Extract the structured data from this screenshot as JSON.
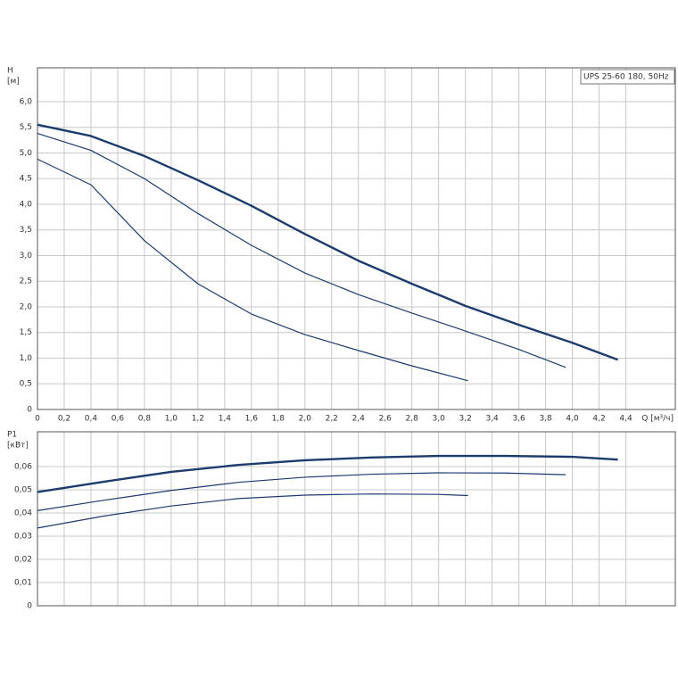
{
  "chart_data": [
    {
      "type": "line",
      "annotation": "UPS 25-60 180, 50Hz",
      "y_label": "H",
      "y_unit": "[м]",
      "x_label": "Q [м³/ч]",
      "xlim": [
        0,
        4.77
      ],
      "ylim": [
        0,
        6.66
      ],
      "grid": true,
      "xticks": [
        0,
        {
          "value": 0.2,
          "label": "0,2"
        },
        {
          "value": 0.4,
          "label": "0,4"
        },
        {
          "value": 0.6,
          "label": "0,6"
        },
        {
          "value": 0.8,
          "label": "0,8"
        },
        {
          "value": 1.0,
          "label": "1,0"
        },
        {
          "value": 1.2,
          "label": "1,2"
        },
        {
          "value": 1.4,
          "label": "1,4"
        },
        {
          "value": 1.6,
          "label": "1,6"
        },
        {
          "value": 1.8,
          "label": "1,8"
        },
        {
          "value": 2.0,
          "label": "2,0"
        },
        {
          "value": 2.2,
          "label": "2,2"
        },
        {
          "value": 2.4,
          "label": "2,4"
        },
        {
          "value": 2.6,
          "label": "2,6"
        },
        {
          "value": 2.8,
          "label": "2,8"
        },
        {
          "value": 3.0,
          "label": "3,0"
        },
        {
          "value": 3.2,
          "label": "3,2"
        },
        {
          "value": 3.4,
          "label": "3,4"
        },
        {
          "value": 3.6,
          "label": "3,6"
        },
        {
          "value": 3.8,
          "label": "3,8"
        },
        {
          "value": 4.0,
          "label": "4,0"
        },
        {
          "value": 4.2,
          "label": "4,2"
        },
        {
          "value": 4.4,
          "label": "4,4"
        }
      ],
      "yticks": [
        0,
        {
          "value": 0.5,
          "label": "0,5"
        },
        {
          "value": 1.0,
          "label": "1,0"
        },
        {
          "value": 1.5,
          "label": "1,5"
        },
        {
          "value": 2.0,
          "label": "2,0"
        },
        {
          "value": 2.5,
          "label": "2,5"
        },
        {
          "value": 3.0,
          "label": "3,0"
        },
        {
          "value": 3.5,
          "label": "3,5"
        },
        {
          "value": 4.0,
          "label": "4,0"
        },
        {
          "value": 4.5,
          "label": "4,5"
        },
        {
          "value": 5.0,
          "label": "5,0"
        },
        {
          "value": 5.5,
          "label": "5,5"
        },
        {
          "value": 6.0,
          "label": "6,0"
        }
      ],
      "series": [
        {
          "color": "#1c3c6e",
          "x": [
            0,
            0.4,
            0.8,
            1.2,
            1.6,
            2.0,
            2.4,
            2.8,
            3.2,
            3.6,
            4.0,
            4.34
          ],
          "values": [
            5.55,
            5.33,
            4.94,
            4.47,
            3.97,
            3.42,
            2.9,
            2.45,
            2.02,
            1.65,
            1.3,
            0.97
          ]
        },
        {
          "color": "#1c3c6e",
          "x": [
            0,
            0.4,
            0.8,
            1.2,
            1.6,
            2.0,
            2.4,
            2.8,
            3.2,
            3.6,
            3.95
          ],
          "values": [
            5.38,
            5.05,
            4.5,
            3.82,
            3.2,
            2.66,
            2.24,
            1.88,
            1.53,
            1.17,
            0.82
          ]
        },
        {
          "color": "#1c3c6e",
          "x": [
            0,
            0.4,
            0.8,
            1.2,
            1.6,
            2.0,
            2.4,
            2.8,
            3.22
          ],
          "values": [
            4.88,
            4.38,
            3.29,
            2.45,
            1.86,
            1.46,
            1.15,
            0.85,
            0.56
          ]
        }
      ]
    },
    {
      "type": "line",
      "y_label": "P1",
      "y_unit": "[кВт]",
      "xlim": [
        0,
        4.77
      ],
      "ylim": [
        0,
        0.075
      ],
      "grid": true,
      "xticks": [
        0,
        0.2,
        0.4,
        0.6,
        0.8,
        1.0,
        1.2,
        1.4,
        1.6,
        1.8,
        2.0,
        2.2,
        2.4,
        2.6,
        2.8,
        3.0,
        3.2,
        3.4,
        3.6,
        3.8,
        4.0,
        4.2,
        4.4
      ],
      "yticks": [
        0,
        {
          "value": 0.01,
          "label": "0,01"
        },
        {
          "value": 0.02,
          "label": "0,02"
        },
        {
          "value": 0.03,
          "label": "0,03"
        },
        {
          "value": 0.04,
          "label": "0,04"
        },
        {
          "value": 0.05,
          "label": "0,05"
        },
        {
          "value": 0.06,
          "label": "0,06"
        }
      ],
      "series": [
        {
          "color": "#1c3c6e",
          "x": [
            0,
            0.5,
            1.0,
            1.5,
            2.0,
            2.5,
            3.0,
            3.5,
            4.0,
            4.34
          ],
          "values": [
            0.049,
            0.0535,
            0.0577,
            0.0607,
            0.0627,
            0.0639,
            0.0646,
            0.0646,
            0.0642,
            0.063
          ]
        },
        {
          "color": "#1c3c6e",
          "x": [
            0,
            0.5,
            1.0,
            1.5,
            2.0,
            2.5,
            3.0,
            3.5,
            3.95
          ],
          "values": [
            0.041,
            0.0455,
            0.0497,
            0.0532,
            0.0554,
            0.0567,
            0.0573,
            0.0572,
            0.0565
          ]
        },
        {
          "color": "#1c3c6e",
          "x": [
            0,
            0.5,
            1.0,
            1.5,
            2.0,
            2.5,
            3.0,
            3.22
          ],
          "values": [
            0.0335,
            0.0387,
            0.043,
            0.0462,
            0.0477,
            0.0482,
            0.048,
            0.0475
          ]
        }
      ]
    }
  ]
}
